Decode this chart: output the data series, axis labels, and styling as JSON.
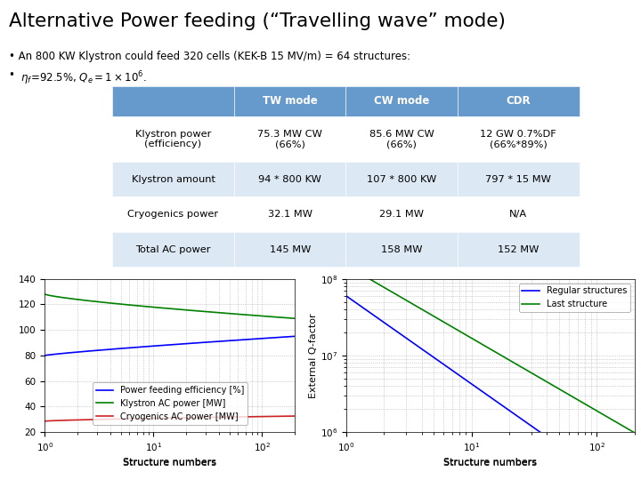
{
  "title": "Alternative Power feeding (“Travelling wave” mode)",
  "bullet1": "An 800 KW Klystron could feed 320 cells (KEK-B 15 MV/m) = 64 structures:",
  "table_header_color": "#6699cc",
  "table_alt_color": "#dde8f5",
  "table_white_color": "#ffffff",
  "col_headers": [
    "",
    "TW mode",
    "CW mode",
    "CDR"
  ],
  "row1_col0": "Klystron power\n(efficiency)",
  "row1_col1": "75.3 MW CW\n(66%)",
  "row1_col2": "85.6 MW CW\n(66%)",
  "row1_col3": "12 GW 0.7%DF\n(66%*89%)",
  "row2": [
    "Klystron amount",
    "94 * 800 KW",
    "107 * 800 KW",
    "797 * 15 MW"
  ],
  "row3": [
    "Cryogenics power",
    "32.1 MW",
    "29.1 MW",
    "N/A"
  ],
  "row4": [
    "Total AC power",
    "145 MW",
    "158 MW",
    "152 MW"
  ],
  "plot1_xlabel": "Structure numbers",
  "plot2_xlabel": "Structure numbers",
  "plot2_ylabel": "External Q-factor",
  "background": "#ffffff"
}
